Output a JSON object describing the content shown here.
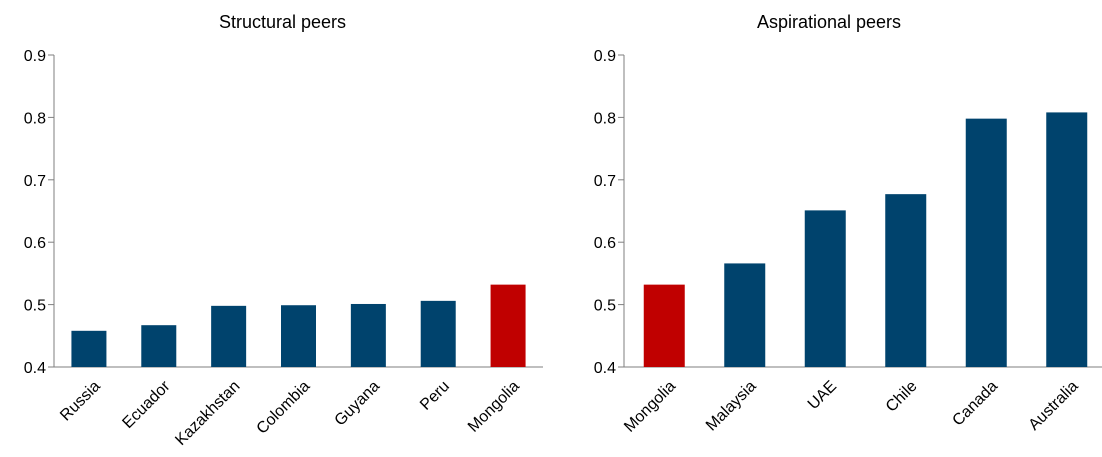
{
  "colors": {
    "default_bar": "#00436D",
    "highlight_bar": "#C00000",
    "axis": "#7F7F7F"
  },
  "chart_data": [
    {
      "type": "bar",
      "title": "Structural peers",
      "categories": [
        "Russia",
        "Ecuador",
        "Kazakhstan",
        "Colombia",
        "Guyana",
        "Peru",
        "Mongolia"
      ],
      "values": [
        0.458,
        0.467,
        0.498,
        0.499,
        0.501,
        0.506,
        0.532
      ],
      "highlight": "Mongolia",
      "ylim": [
        0.4,
        0.9
      ],
      "yticks": [
        "0.4",
        "0.5",
        "0.6",
        "0.7",
        "0.8",
        "0.9"
      ],
      "grid": false
    },
    {
      "type": "bar",
      "title": "Aspirational peers",
      "categories": [
        "Mongolia",
        "Malaysia",
        "UAE",
        "Chile",
        "Canada",
        "Australia"
      ],
      "values": [
        0.532,
        0.566,
        0.651,
        0.677,
        0.798,
        0.808
      ],
      "highlight": "Mongolia",
      "ylim": [
        0.4,
        0.9
      ],
      "yticks": [
        "0.4",
        "0.5",
        "0.6",
        "0.7",
        "0.8",
        "0.9"
      ],
      "grid": false
    }
  ]
}
